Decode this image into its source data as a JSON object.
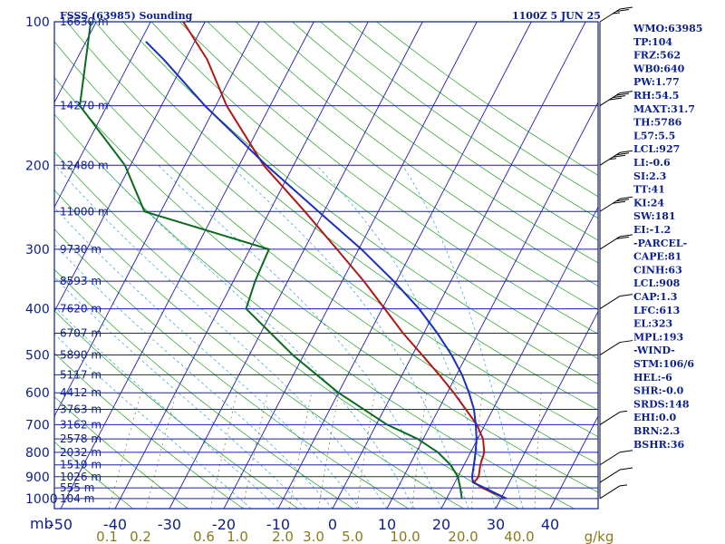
{
  "chart_data": {
    "type": "line",
    "title": "FSSS (63985) Sounding",
    "valid_time": "1100Z  5 JUN 25",
    "pressure_axis_unit": "mb",
    "pressure_ticks": [
      100,
      200,
      300,
      400,
      500,
      600,
      700,
      800,
      900,
      1000
    ],
    "height_levels": [
      {
        "p": 100,
        "label": "16630 m"
      },
      {
        "p": 150,
        "label": "14270 m"
      },
      {
        "p": 200,
        "label": "12480 m"
      },
      {
        "p": 250,
        "label": "11000 m"
      },
      {
        "p": 300,
        "label": "9730 m"
      },
      {
        "p": 350,
        "label": "8593 m"
      },
      {
        "p": 400,
        "label": "7620 m"
      },
      {
        "p": 450,
        "label": "6707 m"
      },
      {
        "p": 500,
        "label": "5890 m"
      },
      {
        "p": 550,
        "label": "5117 m"
      },
      {
        "p": 600,
        "label": "4412 m"
      },
      {
        "p": 650,
        "label": "3763 m"
      },
      {
        "p": 700,
        "label": "3162 m"
      },
      {
        "p": 750,
        "label": "2578 m"
      },
      {
        "p": 800,
        "label": "2032 m"
      },
      {
        "p": 850,
        "label": "1519 m"
      },
      {
        "p": 900,
        "label": "1026 m"
      },
      {
        "p": 950,
        "label": "555 m"
      },
      {
        "p": 1000,
        "label": "104 m"
      }
    ],
    "temperature_ticks": [
      "-50",
      "-40",
      "-30",
      "-20",
      "-10",
      "0",
      "10",
      "20",
      "30",
      "40"
    ],
    "mixing_ratio_labels": [
      "0.1",
      "0.2",
      "0.6",
      "1.0",
      "2.0",
      "3.0",
      "5.0",
      "10.0",
      "20.0",
      "40.0"
    ],
    "mixing_ratio_unit": "g/kg",
    "xlim": [
      -50,
      50
    ],
    "ylim": [
      1000,
      100
    ],
    "log_pressure": true,
    "skew": true,
    "series": [
      {
        "name": "Temperature",
        "color": "#b01818",
        "points": [
          [
            1000,
            31.0
          ],
          [
            950,
            25.5
          ],
          [
            925,
            23.5
          ],
          [
            900,
            23.8
          ],
          [
            850,
            23.0
          ],
          [
            800,
            22.5
          ],
          [
            750,
            21.0
          ],
          [
            700,
            18.5
          ],
          [
            650,
            15.0
          ],
          [
            600,
            11.2
          ],
          [
            550,
            6.8
          ],
          [
            500,
            1.8
          ],
          [
            450,
            -3.8
          ],
          [
            400,
            -9.5
          ],
          [
            350,
            -16.0
          ],
          [
            300,
            -24.0
          ],
          [
            250,
            -33.5
          ],
          [
            200,
            -45.5
          ],
          [
            150,
            -58.0
          ],
          [
            120,
            -66.0
          ],
          [
            100,
            -74.0
          ],
          [
            95,
            -71.5
          ]
        ]
      },
      {
        "name": "Dew Point",
        "color": "#0c6a1e",
        "points": [
          [
            1000,
            22.8
          ],
          [
            950,
            21.5
          ],
          [
            900,
            20.0
          ],
          [
            850,
            17.5
          ],
          [
            800,
            14.0
          ],
          [
            750,
            9.0
          ],
          [
            700,
            2.0
          ],
          [
            600,
            -10.0
          ],
          [
            500,
            -22.0
          ],
          [
            400,
            -35.0
          ],
          [
            350,
            -36.0
          ],
          [
            300,
            -36.5
          ],
          [
            250,
            -63.0
          ],
          [
            200,
            -71.0
          ],
          [
            150,
            -85.0
          ],
          [
            100,
            -91.0
          ]
        ]
      },
      {
        "name": "Parcel",
        "color": "#1b2fbe",
        "points": [
          [
            1000,
            31.0
          ],
          [
            950,
            26.0
          ],
          [
            925,
            23.3
          ],
          [
            900,
            22.6
          ],
          [
            850,
            21.8
          ],
          [
            800,
            20.9
          ],
          [
            750,
            19.8
          ],
          [
            700,
            18.3
          ],
          [
            650,
            16.5
          ],
          [
            600,
            14.0
          ],
          [
            550,
            11.0
          ],
          [
            500,
            7.2
          ],
          [
            450,
            2.5
          ],
          [
            400,
            -3.2
          ],
          [
            350,
            -10.5
          ],
          [
            300,
            -19.5
          ],
          [
            250,
            -31.0
          ],
          [
            200,
            -45.0
          ],
          [
            150,
            -62.0
          ],
          [
            120,
            -74.0
          ],
          [
            110,
            -79.0
          ]
        ]
      }
    ],
    "wind_barbs": [
      {
        "p": 1000,
        "dir": 30,
        "spd": 5
      },
      {
        "p": 925,
        "dir": 45,
        "spd": 10
      },
      {
        "p": 850,
        "dir": 60,
        "spd": 10
      },
      {
        "p": 700,
        "dir": 75,
        "spd": 5
      },
      {
        "p": 500,
        "dir": 90,
        "spd": 10
      },
      {
        "p": 400,
        "dir": 100,
        "spd": 10
      },
      {
        "p": 300,
        "dir": 95,
        "spd": 20
      },
      {
        "p": 250,
        "dir": 110,
        "spd": 30
      },
      {
        "p": 200,
        "dir": 100,
        "spd": 35
      },
      {
        "p": 150,
        "dir": 110,
        "spd": 40
      },
      {
        "p": 100,
        "dir": 100,
        "spd": 25
      }
    ],
    "grid": true
  },
  "stats": [
    "WMO:63985",
    "TP:104",
    "FRZ:562",
    "WB0:640",
    "PW:1.77",
    "RH:54.5",
    "MAXT:31.7",
    "TH:5786",
    "L57:5.5",
    "LCL:927",
    "LI:-0.6",
    "SI:2.3",
    "TT:41",
    "KI:24",
    "SW:181",
    "EI:-1.2",
    "-PARCEL-",
    "CAPE:81",
    "CINH:63",
    "LCL:908",
    "CAP:1.3",
    "LFC:613",
    "EL:323",
    "MPL:193",
    "-WIND-",
    "STM:106/6",
    "HEL:-6",
    "SHR:-0.0",
    "SRDS:148",
    "EHI:0.0",
    "BRN:2.3",
    "BSHR:36"
  ],
  "colors": {
    "frame": "#0b1f8f",
    "isotherm": "#1d1db4",
    "dry_adiabat": "#22a022",
    "moist_adiabat": "#2a9fd6",
    "mixing_ratio": "#8a7a1a",
    "background": "#ffffff"
  }
}
